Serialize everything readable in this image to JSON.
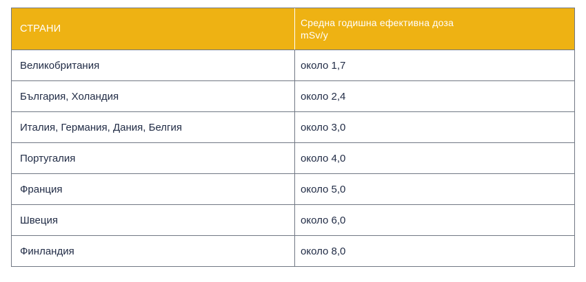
{
  "table": {
    "header": {
      "col1": "СТРАНИ",
      "col2_line1": "Средна годишна ефективна доза",
      "col2_line2": "mSv/y"
    },
    "rows": [
      {
        "country": "Великобритания",
        "dose": "около 1,7"
      },
      {
        "country": "България, Холандия",
        "dose": "около 2,4"
      },
      {
        "country": "Италия, Германия, Дания, Белгия",
        "dose": "около 3,0"
      },
      {
        "country": "Португалия",
        "dose": "около 4,0"
      },
      {
        "country": "Франция",
        "dose": "около 5,0"
      },
      {
        "country": "Швеция",
        "dose": "около 6,0"
      },
      {
        "country": "Финландия",
        "dose": "около 8,0"
      }
    ],
    "colors": {
      "header_bg": "#eeb213",
      "header_text": "#ffffff",
      "body_text": "#1f2a44",
      "border": "#6f7682"
    }
  }
}
